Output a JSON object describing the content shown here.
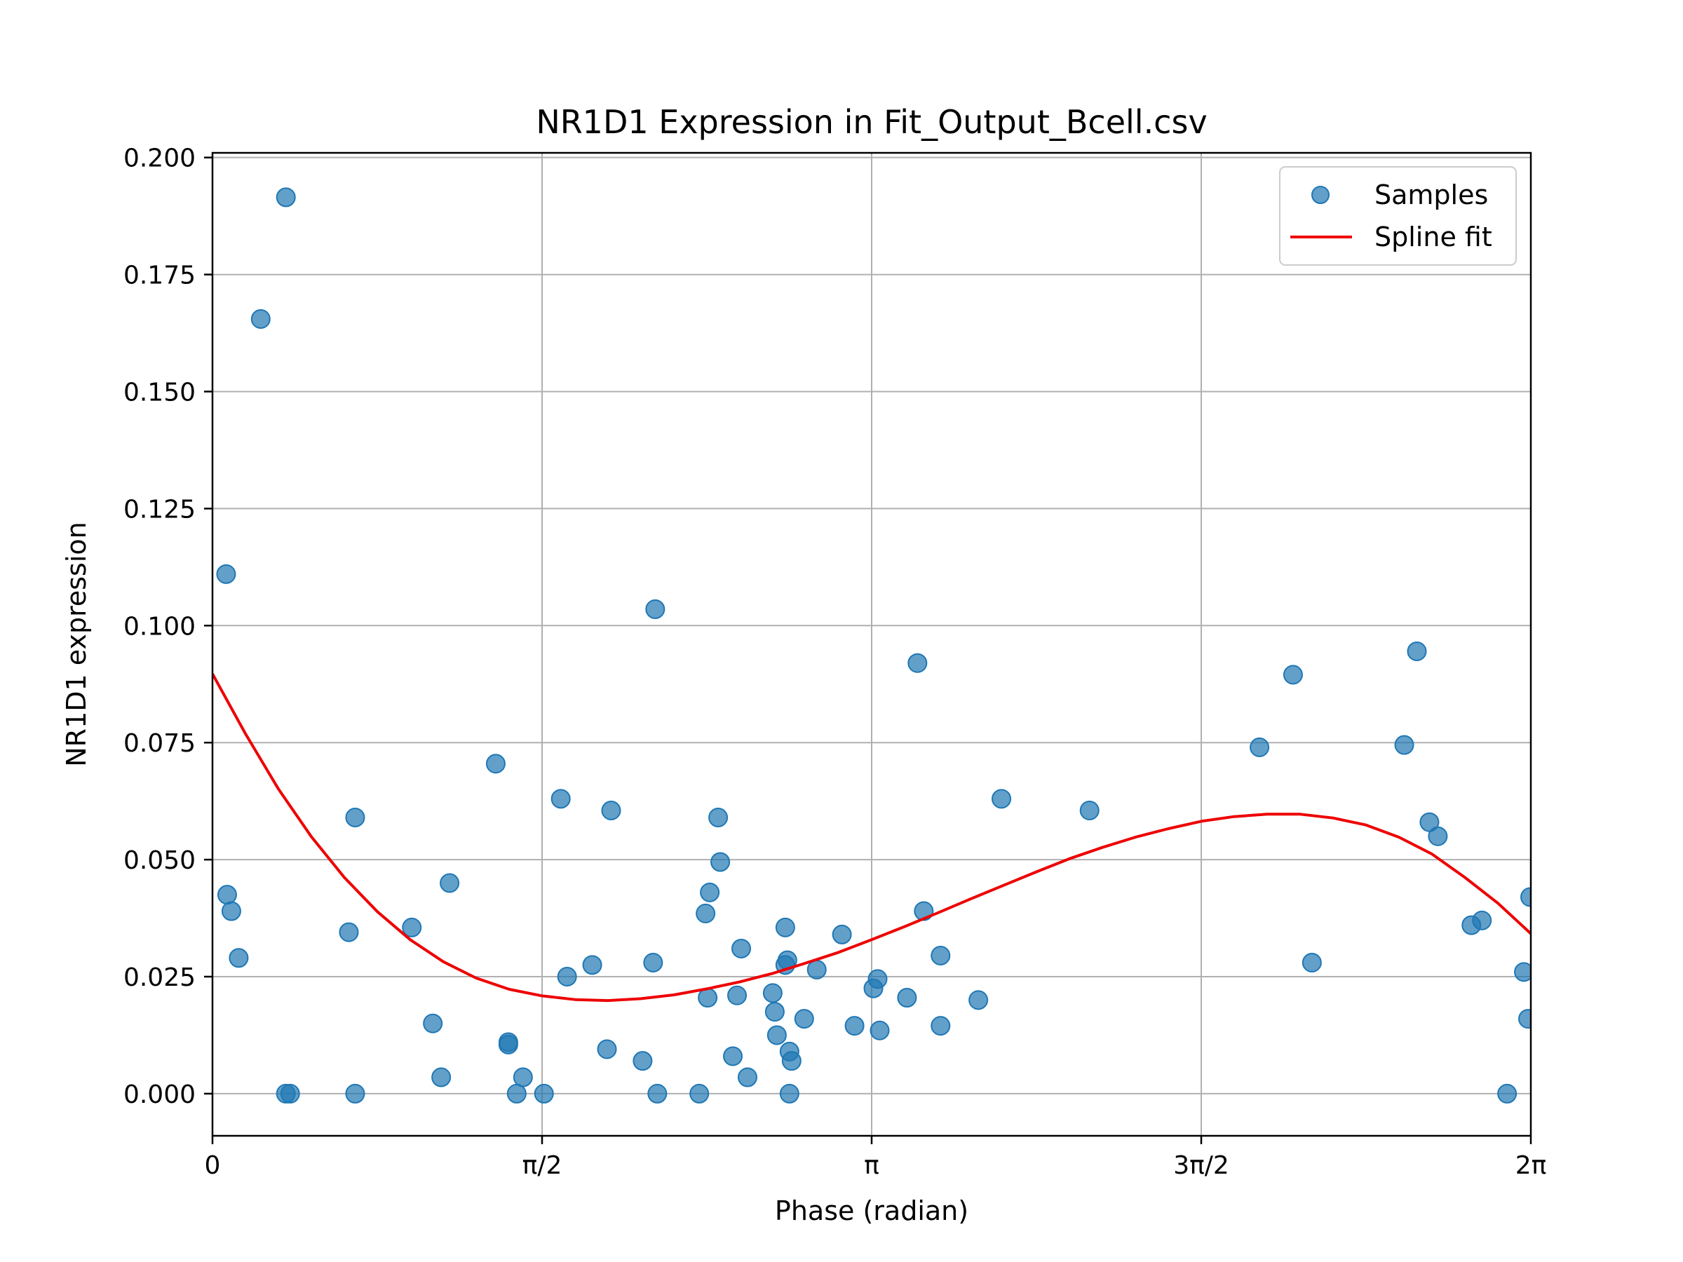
{
  "chart_data": {
    "type": "scatter",
    "title": "NR1D1 Expression in Fit_Output_Bcell.csv",
    "xlabel": "Phase (radian)",
    "ylabel": "NR1D1 expression",
    "xlim": [
      0,
      6.2832
    ],
    "ylim": [
      -0.009,
      0.201
    ],
    "grid": true,
    "legend_position": "top-right",
    "x_ticks": [
      {
        "value": 0,
        "label": "0"
      },
      {
        "value": 1.5708,
        "label": "π/2"
      },
      {
        "value": 3.1416,
        "label": "π"
      },
      {
        "value": 4.7124,
        "label": "3π/2"
      },
      {
        "value": 6.2832,
        "label": "2π"
      }
    ],
    "y_ticks": [
      {
        "value": 0.0,
        "label": "0.000"
      },
      {
        "value": 0.025,
        "label": "0.025"
      },
      {
        "value": 0.05,
        "label": "0.050"
      },
      {
        "value": 0.075,
        "label": "0.075"
      },
      {
        "value": 0.1,
        "label": "0.100"
      },
      {
        "value": 0.125,
        "label": "0.125"
      },
      {
        "value": 0.15,
        "label": "0.150"
      },
      {
        "value": 0.175,
        "label": "0.175"
      },
      {
        "value": 0.2,
        "label": "0.200"
      }
    ],
    "series": [
      {
        "name": "Samples",
        "type": "scatter",
        "color": "#1f77b4",
        "x": [
          0.065,
          0.07,
          0.09,
          0.125,
          0.23,
          0.35,
          0.35,
          0.37,
          0.65,
          0.68,
          0.68,
          0.95,
          1.05,
          1.09,
          1.13,
          1.35,
          1.41,
          1.41,
          1.45,
          1.48,
          1.58,
          1.66,
          1.69,
          1.81,
          1.88,
          1.9,
          2.05,
          2.1,
          2.11,
          2.12,
          2.32,
          2.35,
          2.36,
          2.37,
          2.41,
          2.42,
          2.48,
          2.5,
          2.52,
          2.55,
          2.67,
          2.68,
          2.69,
          2.73,
          2.73,
          2.74,
          2.75,
          2.75,
          2.76,
          2.82,
          2.88,
          3.0,
          3.06,
          3.15,
          3.17,
          3.18,
          3.31,
          3.36,
          3.39,
          3.47,
          3.47,
          3.65,
          3.76,
          4.18,
          4.99,
          5.15,
          5.24,
          5.68,
          5.74,
          5.8,
          5.84,
          6.0,
          6.05,
          6.17,
          6.25,
          6.27,
          6.28
        ],
        "y": [
          0.111,
          0.0425,
          0.039,
          0.029,
          0.1655,
          0.1915,
          0.0,
          0.0,
          0.0345,
          0.0,
          0.059,
          0.0355,
          0.015,
          0.0035,
          0.045,
          0.0705,
          0.011,
          0.0105,
          0.0,
          0.0035,
          0.0,
          0.063,
          0.025,
          0.0275,
          0.0095,
          0.0605,
          0.007,
          0.028,
          0.1035,
          0.0,
          0.0,
          0.0385,
          0.0205,
          0.043,
          0.059,
          0.0495,
          0.008,
          0.021,
          0.031,
          0.0035,
          0.0215,
          0.0175,
          0.0125,
          0.0275,
          0.0355,
          0.0285,
          0.009,
          0.0,
          0.007,
          0.016,
          0.0265,
          0.034,
          0.0145,
          0.0225,
          0.0245,
          0.0135,
          0.0205,
          0.092,
          0.039,
          0.0295,
          0.0145,
          0.02,
          0.063,
          0.0605,
          0.074,
          0.0895,
          0.028,
          0.0745,
          0.0945,
          0.058,
          0.055,
          0.036,
          0.037,
          0.0,
          0.026,
          0.016,
          0.042
        ]
      },
      {
        "name": "Spline fit",
        "type": "line",
        "color": "#ee0000",
        "x": [
          0.0,
          0.1571,
          0.3142,
          0.4712,
          0.6283,
          0.7854,
          0.9425,
          1.0996,
          1.2566,
          1.4137,
          1.5708,
          1.7279,
          1.885,
          2.042,
          2.1991,
          2.3562,
          2.5133,
          2.6704,
          2.8274,
          2.9845,
          3.1416,
          3.2987,
          3.4558,
          3.6128,
          3.7699,
          3.927,
          4.0841,
          4.2412,
          4.3982,
          4.5553,
          4.7124,
          4.8695,
          5.0265,
          5.1836,
          5.3407,
          5.4978,
          5.6549,
          5.812,
          5.969,
          6.1261,
          6.2832
        ],
        "y": [
          0.0897,
          0.0769,
          0.0651,
          0.0549,
          0.0462,
          0.0389,
          0.0329,
          0.0282,
          0.0247,
          0.0223,
          0.0209,
          0.0201,
          0.0199,
          0.0203,
          0.0211,
          0.0224,
          0.0239,
          0.0257,
          0.0279,
          0.0302,
          0.0329,
          0.0357,
          0.0386,
          0.0416,
          0.0445,
          0.0474,
          0.0502,
          0.0526,
          0.0548,
          0.0566,
          0.0582,
          0.0592,
          0.0597,
          0.0597,
          0.0589,
          0.0574,
          0.0548,
          0.0512,
          0.0462,
          0.0407,
          0.0342
        ]
      }
    ]
  }
}
